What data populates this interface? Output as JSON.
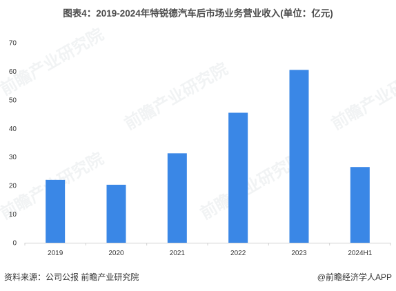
{
  "chart_data": {
    "type": "bar",
    "title": "图表4：2019-2024年特锐德汽车后市场业务营业收入(单位：亿元)",
    "categories": [
      "2019",
      "2020",
      "2021",
      "2022",
      "2023",
      "2024H1"
    ],
    "series": [
      {
        "values": [
          22,
          20.3,
          31.3,
          45.5,
          60.5,
          26.5
        ]
      }
    ],
    "xlabel": "",
    "ylabel": "",
    "ylim": [
      0,
      70
    ],
    "yticks": [
      0,
      10,
      20,
      30,
      40,
      50,
      60,
      70
    ],
    "grid": false,
    "legend": "none",
    "bar_color": "#3a87e6"
  },
  "footer": {
    "source": "资料来源：公司公报 前瞻产业研究院",
    "brand": "@前瞻经济学人APP"
  }
}
